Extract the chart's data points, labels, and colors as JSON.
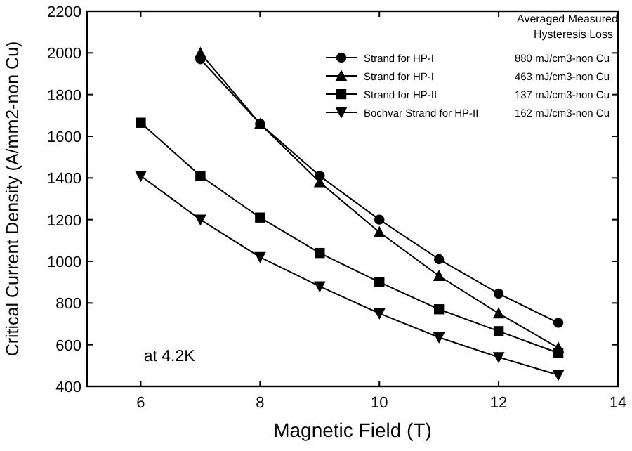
{
  "chart_data": {
    "type": "line",
    "xlabel": "Magnetic Field (T)",
    "ylabel": "Critical Current Density (A/mm2-non Cu)",
    "xlim": [
      5.1,
      14
    ],
    "xticks": [
      6,
      8,
      10,
      12,
      14
    ],
    "ylim": [
      400,
      2200
    ],
    "yticks": [
      400,
      600,
      800,
      1000,
      1200,
      1400,
      1600,
      1800,
      2000,
      2200
    ],
    "grid": false,
    "legend": "top right",
    "line_style": "solid",
    "legend_title": "Averaged Measured Hysteresis Loss",
    "series": [
      {
        "name": "Strand for HP-I",
        "color": "#000000",
        "marker": "circle",
        "x": [
          7,
          8,
          9,
          10,
          11,
          12,
          13
        ],
        "values": [
          1970,
          1660,
          1410,
          1200,
          1010,
          845,
          705
        ]
      },
      {
        "name": "Strand for HP-I",
        "color": "#000000",
        "marker": "triangle",
        "x": [
          7,
          8,
          9,
          10,
          11,
          12,
          13
        ],
        "values": [
          2000,
          1660,
          1380,
          1140,
          930,
          750,
          585
        ]
      },
      {
        "name": "Strand for HP-II",
        "color": "#000000",
        "marker": "square",
        "x": [
          6,
          7,
          8,
          9,
          10,
          11,
          12,
          13
        ],
        "values": [
          1665,
          1410,
          1210,
          1040,
          900,
          770,
          665,
          560
        ]
      },
      {
        "name": "Bochvar Strand for HP-II",
        "color": "#000000",
        "marker": "triangle-down",
        "x": [
          6,
          7,
          8,
          9,
          10,
          11,
          12,
          13
        ],
        "values": [
          1410,
          1200,
          1020,
          880,
          750,
          635,
          540,
          455
        ]
      }
    ],
    "annotations": [
      "at 4.2K",
      "880 mJ/cm3-non Cu",
      "463 mJ/cm3-non Cu",
      "137 mJ/cm3-non Cu",
      "162 mJ/cm3-non Cu"
    ]
  }
}
